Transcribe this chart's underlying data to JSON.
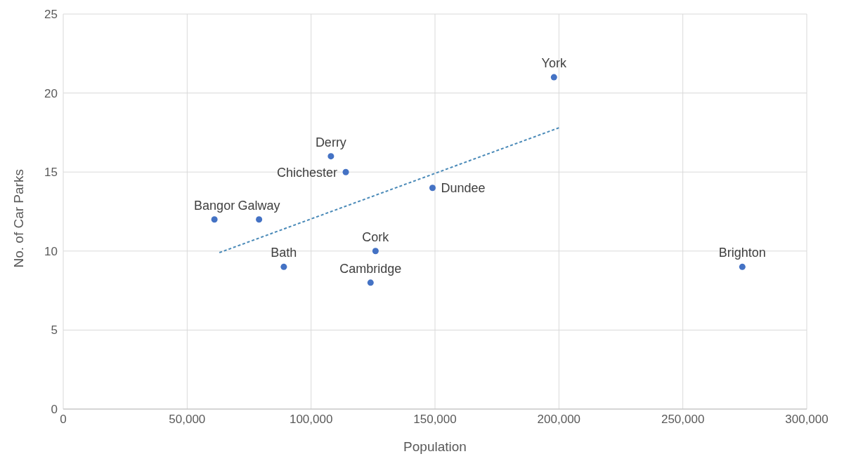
{
  "chart_data": {
    "type": "scatter",
    "xlabel": "Population",
    "ylabel": "No. of Car Parks",
    "xlim": [
      0,
      300000
    ],
    "xticks": [
      {
        "value": 0,
        "label": "0"
      },
      {
        "value": 50000,
        "label": "50,000"
      },
      {
        "value": 100000,
        "label": "100,000"
      },
      {
        "value": 150000,
        "label": "150,000"
      },
      {
        "value": 200000,
        "label": "200,000"
      },
      {
        "value": 250000,
        "label": "250,000"
      },
      {
        "value": 300000,
        "label": "300,000"
      }
    ],
    "ylim": [
      0,
      25
    ],
    "yticks": [
      0,
      5,
      10,
      15,
      20,
      25
    ],
    "grid": true,
    "legend": false,
    "marker": "circle",
    "series": [
      {
        "color": "#4472c4",
        "x": [
          61000,
          79000,
          89000,
          108000,
          114000,
          126000,
          124000,
          149000,
          198000,
          274000
        ],
        "values": [
          12,
          12,
          9,
          16,
          15,
          10,
          8,
          14,
          21,
          9
        ]
      },
      {
        "type": "line",
        "color": "#4a8ab8",
        "line_style": "dashed",
        "marker": "none",
        "x": [
          63000,
          200000
        ],
        "values": [
          9.9,
          17.8
        ]
      }
    ],
    "annotations": [
      {
        "text": "Bangor",
        "x": 61000,
        "y": 12
      },
      {
        "text": "Galway",
        "x": 79000,
        "y": 12
      },
      {
        "text": "Bath",
        "x": 89000,
        "y": 9
      },
      {
        "text": "Derry",
        "x": 108000,
        "y": 16
      },
      {
        "text": "Chichester",
        "x": 114000,
        "y": 15
      },
      {
        "text": "Cork",
        "x": 126000,
        "y": 10
      },
      {
        "text": "Cambridge",
        "x": 124000,
        "y": 8
      },
      {
        "text": "Dundee",
        "x": 149000,
        "y": 14
      },
      {
        "text": "York",
        "x": 198000,
        "y": 21
      },
      {
        "text": "Brighton",
        "x": 274000,
        "y": 9
      }
    ]
  }
}
